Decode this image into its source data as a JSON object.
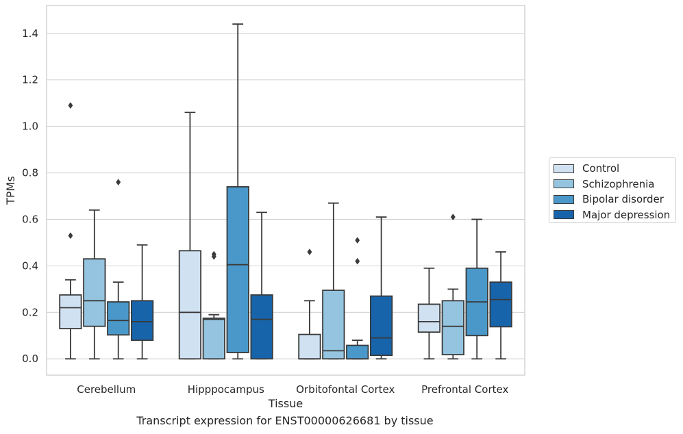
{
  "chart_data": {
    "type": "boxplot",
    "xlabel": "Tissue",
    "ylabel": "TPMs",
    "ylim": [
      -0.07,
      1.52
    ],
    "yticks": [
      0.0,
      0.2,
      0.4,
      0.6,
      0.8,
      1.0,
      1.2,
      1.4
    ],
    "ytick_labels": [
      "0.0",
      "0.2",
      "0.4",
      "0.6",
      "0.8",
      "1.0",
      "1.2",
      "1.4"
    ],
    "grid": "horizontal",
    "legend_position": "right",
    "categories": [
      "Cerebellum",
      "Hipppocampus",
      "Orbitofontal Cortex",
      "Prefrontal Cortex"
    ],
    "series": [
      {
        "name": "Control",
        "color": "#d0e1f2",
        "boxes": [
          {
            "min": 0.0,
            "q1": 0.13,
            "median": 0.22,
            "q3": 0.275,
            "max": 0.34,
            "outliers": [
              0.53,
              1.09
            ]
          },
          {
            "min": 0.0,
            "q1": 0.0,
            "median": 0.2,
            "q3": 0.465,
            "max": 1.06,
            "outliers": []
          },
          {
            "min": 0.0,
            "q1": 0.0,
            "median": 0.0,
            "q3": 0.105,
            "max": 0.25,
            "outliers": [
              0.46
            ]
          },
          {
            "min": 0.0,
            "q1": 0.115,
            "median": 0.16,
            "q3": 0.235,
            "max": 0.39,
            "outliers": []
          }
        ]
      },
      {
        "name": "Schizophrenia",
        "color": "#94c4df",
        "boxes": [
          {
            "min": 0.0,
            "q1": 0.14,
            "median": 0.25,
            "q3": 0.43,
            "max": 0.64,
            "outliers": []
          },
          {
            "min": 0.0,
            "q1": 0.0,
            "median": 0.17,
            "q3": 0.175,
            "max": 0.19,
            "outliers": [
              0.44,
              0.45
            ]
          },
          {
            "min": 0.0,
            "q1": 0.0,
            "median": 0.035,
            "q3": 0.295,
            "max": 0.67,
            "outliers": []
          },
          {
            "min": 0.0,
            "q1": 0.018,
            "median": 0.14,
            "q3": 0.25,
            "max": 0.3,
            "outliers": [
              0.61
            ]
          }
        ]
      },
      {
        "name": "Bipolar disorder",
        "color": "#4a98c9",
        "boxes": [
          {
            "min": 0.0,
            "q1": 0.103,
            "median": 0.165,
            "q3": 0.245,
            "max": 0.33,
            "outliers": [
              0.76
            ]
          },
          {
            "min": 0.0,
            "q1": 0.027,
            "median": 0.405,
            "q3": 0.74,
            "max": 1.44,
            "outliers": []
          },
          {
            "min": 0.0,
            "q1": 0.0,
            "median": 0.0,
            "q3": 0.058,
            "max": 0.08,
            "outliers": [
              0.42,
              0.51
            ]
          },
          {
            "min": 0.0,
            "q1": 0.1,
            "median": 0.245,
            "q3": 0.39,
            "max": 0.6,
            "outliers": []
          }
        ]
      },
      {
        "name": "Major depression",
        "color": "#1764ab",
        "boxes": [
          {
            "min": 0.0,
            "q1": 0.08,
            "median": 0.16,
            "q3": 0.25,
            "max": 0.49,
            "outliers": []
          },
          {
            "min": 0.0,
            "q1": 0.0,
            "median": 0.17,
            "q3": 0.275,
            "max": 0.63,
            "outliers": []
          },
          {
            "min": 0.0,
            "q1": 0.015,
            "median": 0.09,
            "q3": 0.27,
            "max": 0.61,
            "outliers": []
          },
          {
            "min": 0.0,
            "q1": 0.138,
            "median": 0.255,
            "q3": 0.33,
            "max": 0.46,
            "outliers": []
          }
        ]
      }
    ]
  },
  "caption": "Transcript expression for ENST00000626681 by tissue",
  "colors": {
    "grid": "#d3d3d3",
    "frame": "#cccccc",
    "box_edge": "#3a3a3a",
    "text": "#262626"
  }
}
